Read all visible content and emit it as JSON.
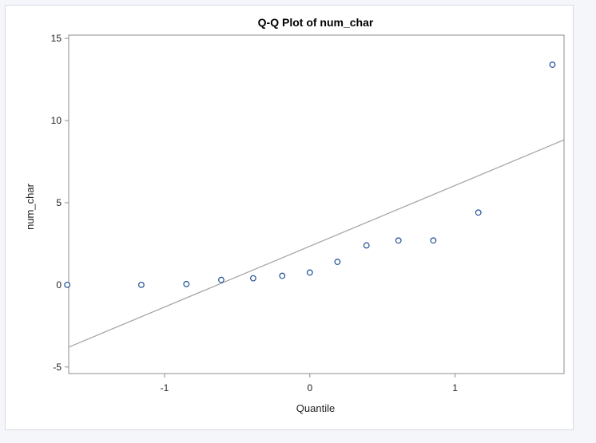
{
  "chart_data": {
    "type": "scatter",
    "title": "Q-Q Plot of num_char",
    "xlabel": "Quantile",
    "ylabel": "num_char",
    "xlim": [
      -1.66,
      1.75
    ],
    "ylim": [
      -5.4,
      15.2
    ],
    "x_ticks": [
      -1,
      0,
      1
    ],
    "x_tick_labels": [
      "-1",
      "0",
      "1"
    ],
    "y_ticks": [
      -5,
      0,
      5,
      10,
      15
    ],
    "y_tick_labels": [
      "-5",
      "0",
      "5",
      "10",
      "15"
    ],
    "grid": false,
    "legend": false,
    "points": [
      {
        "x": -1.67,
        "y": 0.0
      },
      {
        "x": -1.16,
        "y": 0.0
      },
      {
        "x": -0.85,
        "y": 0.05
      },
      {
        "x": -0.61,
        "y": 0.3
      },
      {
        "x": -0.39,
        "y": 0.4
      },
      {
        "x": -0.19,
        "y": 0.55
      },
      {
        "x": 0.0,
        "y": 0.75
      },
      {
        "x": 0.19,
        "y": 1.4
      },
      {
        "x": 0.39,
        "y": 2.4
      },
      {
        "x": 0.61,
        "y": 2.7
      },
      {
        "x": 0.85,
        "y": 2.7
      },
      {
        "x": 1.16,
        "y": 4.4
      },
      {
        "x": 1.67,
        "y": 13.4
      }
    ],
    "reference_line": {
      "intercept": 2.35,
      "slope": 3.7
    },
    "colors": {
      "marker": "#1f4e96",
      "reference_line": "#a6a6a6",
      "axis": "#8c8c8c"
    }
  }
}
